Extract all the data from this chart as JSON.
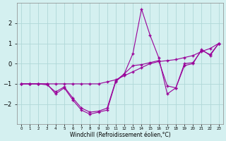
{
  "background_color": "#d4f0f0",
  "grid_color": "#b0d8d8",
  "line_color": "#990099",
  "hours": [
    0,
    1,
    2,
    3,
    4,
    5,
    6,
    7,
    8,
    9,
    10,
    11,
    12,
    13,
    14,
    15,
    16,
    17,
    18,
    19,
    20,
    21,
    22,
    23
  ],
  "trend": [
    -1.0,
    -1.0,
    -1.0,
    -1.0,
    -1.0,
    -1.0,
    -1.0,
    -1.0,
    -1.0,
    -1.0,
    -0.9,
    -0.8,
    -0.6,
    -0.4,
    -0.2,
    0.0,
    0.1,
    0.15,
    0.2,
    0.3,
    0.4,
    0.6,
    0.75,
    1.0
  ],
  "actual": [
    -1.0,
    -1.0,
    -1.0,
    -1.0,
    -1.5,
    -1.2,
    -1.8,
    -2.3,
    -2.5,
    -2.4,
    -2.3,
    -0.9,
    -0.5,
    0.5,
    2.7,
    1.4,
    0.3,
    -1.5,
    -1.2,
    -0.1,
    0.0,
    0.7,
    0.4,
    1.0
  ],
  "middle": [
    -1.0,
    -1.0,
    -1.0,
    -1.05,
    -1.4,
    -1.15,
    -1.7,
    -2.2,
    -2.4,
    -2.35,
    -2.2,
    -0.85,
    -0.5,
    -0.1,
    -0.05,
    0.05,
    0.15,
    -1.1,
    -1.2,
    0.0,
    0.05,
    0.65,
    0.45,
    1.0
  ],
  "xlabel": "Windchill (Refroidissement éolien,°C)",
  "ylim": [
    -3.0,
    3.0
  ],
  "yticks": [
    -2,
    -1,
    0,
    1,
    2
  ],
  "xlim": [
    -0.5,
    23.5
  ]
}
